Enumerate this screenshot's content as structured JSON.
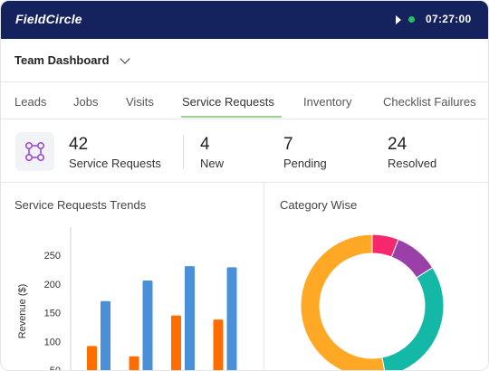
{
  "header": {
    "logo": "FieldCircle",
    "timer": "07:27:00",
    "status_color": "#22c55e"
  },
  "dashboard": {
    "selected": "Team Dashboard"
  },
  "tabs": [
    {
      "label": "Leads"
    },
    {
      "label": "Jobs"
    },
    {
      "label": "Visits"
    },
    {
      "label": "Service Requests",
      "active": true
    },
    {
      "label": "Inventory"
    },
    {
      "label": "Checklist Failures"
    }
  ],
  "stats": {
    "icon": "workflow-nodes-icon",
    "items": [
      {
        "value": "42",
        "label": "Service Requests"
      },
      {
        "value": "4",
        "label": "New"
      },
      {
        "value": "7",
        "label": "Pending"
      },
      {
        "value": "24",
        "label": "Resolved"
      }
    ]
  },
  "panels": {
    "trends_title": "Service Requests Trends",
    "category_title": "Category Wise"
  },
  "chart_data": [
    {
      "type": "bar",
      "title": "Service Requests Trends",
      "ylabel": "Revenue ($)",
      "ylim": [
        50,
        250
      ],
      "yticks": [
        250,
        200,
        150,
        100,
        50
      ],
      "grid": false,
      "series": [
        {
          "color": "#ff6d00",
          "values": [
            92,
            74,
            145,
            138
          ]
        },
        {
          "color": "#4a90d9",
          "values": [
            170,
            206,
            231,
            229
          ]
        }
      ]
    },
    {
      "type": "pie",
      "title": "Category Wise",
      "donut": true,
      "slices": [
        {
          "value": 6,
          "color": "#f5286e"
        },
        {
          "value": 10,
          "color": "#9b3fa9"
        },
        {
          "value": 31,
          "color": "#14b8a6"
        },
        {
          "value": 53,
          "color": "#ffa826"
        }
      ]
    }
  ]
}
